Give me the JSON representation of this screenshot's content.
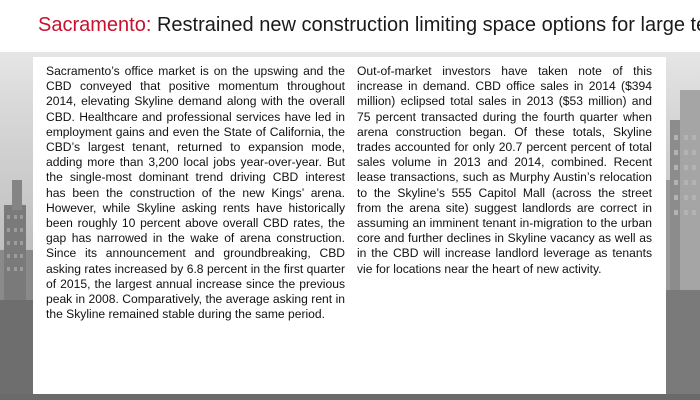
{
  "slide": {
    "title_city": "Sacramento:",
    "title_rest": " Restrained new construction limiting space options for large tenants",
    "left_column": "Sacramento’s office market is on the upswing and the CBD conveyed that positive momentum throughout 2014, elevating Skyline demand along with the overall CBD. Healthcare and professional services have led in employment gains and even the State of California, the CBD’s largest tenant, returned to expansion mode, adding more than 3,200 local jobs year-over-year. But the single-most dominant trend driving CBD interest has been the construction of the new Kings’ arena. However, while Skyline asking rents have historically been roughly 10 percent above overall CBD rates, the gap has narrowed in the wake of arena construction. Since its announcement and groundbreaking, CBD asking rates increased by 6.8 percent in the first quarter of 2015, the largest annual increase since the previous peak in 2008. Comparatively, the average asking rent in the Skyline remained stable during the same period.",
    "right_column": "Out-of-market investors have taken note of this increase in demand. CBD office sales in 2014 ($394 million) eclipsed total sales in 2013 ($53 million) and 75 percent transacted during the fourth quarter when arena construction began. Of these totals, Skyline trades accounted for only 20.7 percent percent of total sales volume in 2013 and 2014, combined. Recent lease transactions, such as Murphy Austin’s relocation to the Skyline’s 555 Capitol Mall (across the street from the arena site) suggest landlords are correct in assuming an imminent tenant in-migration to the urban core and further declines in Skyline vacancy as well as in the CBD will increase landlord leverage as tenants vie for locations near the heart of new activity."
  },
  "colors": {
    "accent": "#c8102e",
    "title_text": "#1a1a1a",
    "body_text": "#111111",
    "panel": "#ffffff"
  }
}
